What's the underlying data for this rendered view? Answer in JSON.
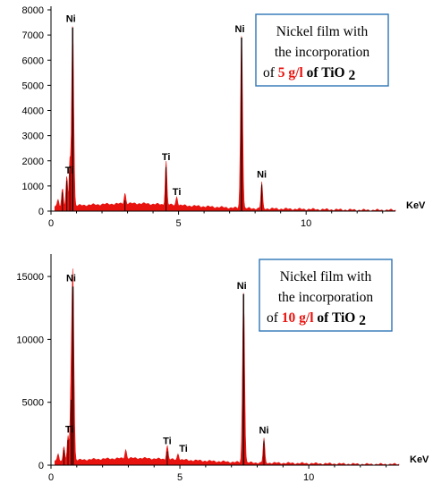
{
  "colors": {
    "spectrum": "#e8130f",
    "peak_core": "#000000",
    "legend_border": "#2e75b6",
    "highlight": "#e8130f"
  },
  "chart_data": [
    {
      "type": "line",
      "xlabel": "KeV",
      "ylabel": "",
      "xlim": [
        0,
        13.5
      ],
      "ylim": [
        0,
        8000
      ],
      "x_ticks": [
        {
          "value": 0,
          "label": "0"
        },
        {
          "value": 5,
          "label": "5"
        },
        {
          "value": 10,
          "label": "10"
        }
      ],
      "y_ticks": [
        {
          "value": 0,
          "label": "0"
        },
        {
          "value": 1000,
          "label": "1000"
        },
        {
          "value": 2000,
          "label": "2000"
        },
        {
          "value": 3000,
          "label": "3000"
        },
        {
          "value": 4000,
          "label": "4000"
        },
        {
          "value": 5000,
          "label": "5000"
        },
        {
          "value": 6000,
          "label": "6000"
        },
        {
          "value": 7000,
          "label": "7000"
        },
        {
          "value": 8000,
          "label": "8000"
        }
      ],
      "background": 300,
      "peaks": [
        {
          "x": 0.28,
          "y": 300,
          "label": ""
        },
        {
          "x": 0.45,
          "y": 750,
          "label": ""
        },
        {
          "x": 0.62,
          "y": 1200,
          "label": ""
        },
        {
          "x": 0.74,
          "y": 1800,
          "label": ""
        },
        {
          "x": 0.85,
          "y": 7300,
          "label": "Ni"
        },
        {
          "x": 2.9,
          "y": 420,
          "label": ""
        },
        {
          "x": 4.51,
          "y": 1750,
          "label": "Ti"
        },
        {
          "x": 4.93,
          "y": 350,
          "label": "Ti"
        },
        {
          "x": 7.47,
          "y": 6900,
          "label": "Ni"
        },
        {
          "x": 8.26,
          "y": 1050,
          "label": "Ni"
        }
      ],
      "annotations": [
        {
          "x": 0.3,
          "y": 1500,
          "label": "Ti"
        }
      ],
      "legend": {
        "line1": "Nickel film with",
        "line2": "the incorporation",
        "prefix": "of ",
        "amount": "5 g/l",
        "middle": " of ",
        "compound": "TiO",
        "subscript": "2",
        "placement": "top-right"
      }
    },
    {
      "type": "line",
      "xlabel": "KeV",
      "ylabel": "",
      "xlim": [
        0,
        13.5
      ],
      "ylim": [
        0,
        16500
      ],
      "x_ticks": [
        {
          "value": 0,
          "label": "0"
        },
        {
          "value": 5,
          "label": "5"
        },
        {
          "value": 10,
          "label": "10"
        }
      ],
      "y_ticks": [
        {
          "value": 0,
          "label": "0"
        },
        {
          "value": 5000,
          "label": "5000"
        },
        {
          "value": 10000,
          "label": "10000"
        },
        {
          "value": 15000,
          "label": "15000"
        }
      ],
      "background": 550,
      "peaks": [
        {
          "x": 0.28,
          "y": 600,
          "label": ""
        },
        {
          "x": 0.5,
          "y": 1200,
          "label": ""
        },
        {
          "x": 0.66,
          "y": 2000,
          "label": ""
        },
        {
          "x": 0.78,
          "y": 5200,
          "label": ""
        },
        {
          "x": 0.85,
          "y": 14200,
          "label": "Ni"
        },
        {
          "x": 2.9,
          "y": 700,
          "label": ""
        },
        {
          "x": 4.51,
          "y": 1100,
          "label": "Ti"
        },
        {
          "x": 4.93,
          "y": 500,
          "label": "Ti"
        },
        {
          "x": 7.47,
          "y": 13600,
          "label": "Ni"
        },
        {
          "x": 8.26,
          "y": 1950,
          "label": "Ni"
        }
      ],
      "annotations": [
        {
          "x": 0.3,
          "y": 2600,
          "label": "Ti"
        }
      ],
      "legend": {
        "line1": "Nickel film with",
        "line2": "the incorporation",
        "prefix": "of ",
        "amount": "10 g/l",
        "middle": " of ",
        "compound": "TiO",
        "subscript": "2",
        "placement": "top-right"
      }
    }
  ]
}
